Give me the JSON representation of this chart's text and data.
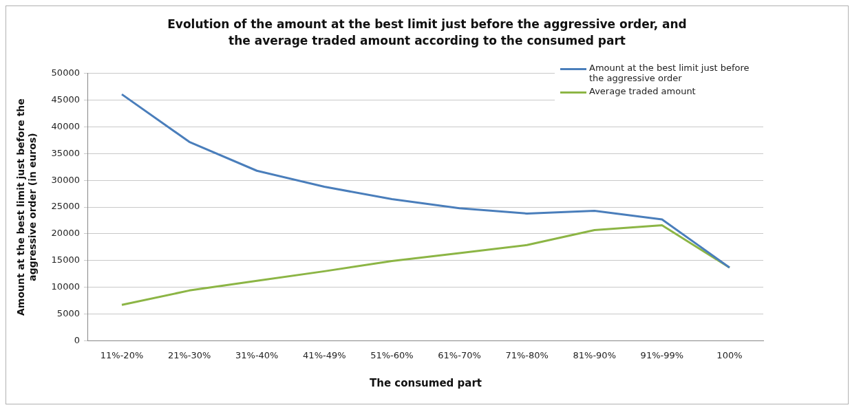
{
  "chart_data": {
    "type": "line",
    "title": "Evolution of the amount at the best limit just before the aggressive order, and the average traded amount according to the consumed part",
    "xlabel": "The consumed part",
    "ylabel": "Amount at the best limit just before the aggressive order (in euros)",
    "categories": [
      "11%-20%",
      "21%-30%",
      "31%-40%",
      "41%-49%",
      "51%-60%",
      "61%-70%",
      "71%-80%",
      "81%-90%",
      "91%-99%",
      "100%"
    ],
    "series": [
      {
        "name": "Amount at the best limit just before the aggressive order",
        "color": "#4a7ebb",
        "values": [
          46100,
          37200,
          31800,
          28800,
          26500,
          24800,
          23800,
          24300,
          22700,
          13700
        ]
      },
      {
        "name": "Average traded amount",
        "color": "#8cb545",
        "values": [
          6700,
          9400,
          11200,
          13000,
          14900,
          16400,
          17900,
          20700,
          21600,
          13700
        ]
      }
    ],
    "ylim": [
      0,
      50000
    ],
    "yticks": [
      0,
      5000,
      10000,
      15000,
      20000,
      25000,
      30000,
      35000,
      40000,
      45000,
      50000
    ],
    "grid": "y",
    "legend": "top right",
    "marker": "none",
    "line_style": "solid"
  }
}
